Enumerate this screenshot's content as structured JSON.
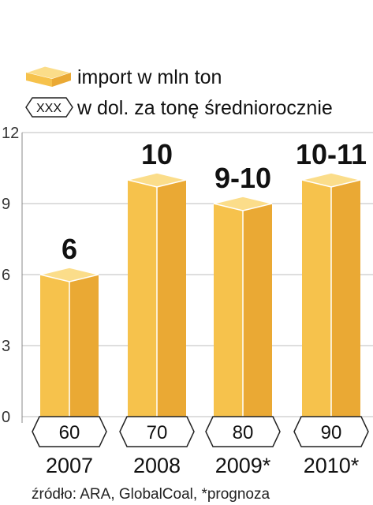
{
  "legend": {
    "import_label": "import w mln ton",
    "price_symbol": "XXX",
    "price_label": "w dol. za tonę średniorocznie"
  },
  "chart_data": {
    "type": "bar",
    "categories": [
      "2007",
      "2008",
      "2009*",
      "2010*"
    ],
    "values": [
      6,
      10,
      9,
      10
    ],
    "value_labels": [
      "6",
      "10",
      "9-10",
      "10-11"
    ],
    "price_labels": [
      "60",
      "70",
      "80",
      "90"
    ],
    "y_ticks": [
      "0",
      "3",
      "6",
      "9",
      "12"
    ],
    "ylim": [
      0,
      12
    ],
    "grid": true,
    "legend_position": "top-left"
  },
  "footer": "źródło: ARA, GlobalCoal, *prognoza",
  "colors": {
    "bar_front_left": "#f6c24c",
    "bar_front_right": "#eaa934",
    "bar_top": "#fbdd8a",
    "grid": "#bdbdbd",
    "axis": "#888888"
  }
}
